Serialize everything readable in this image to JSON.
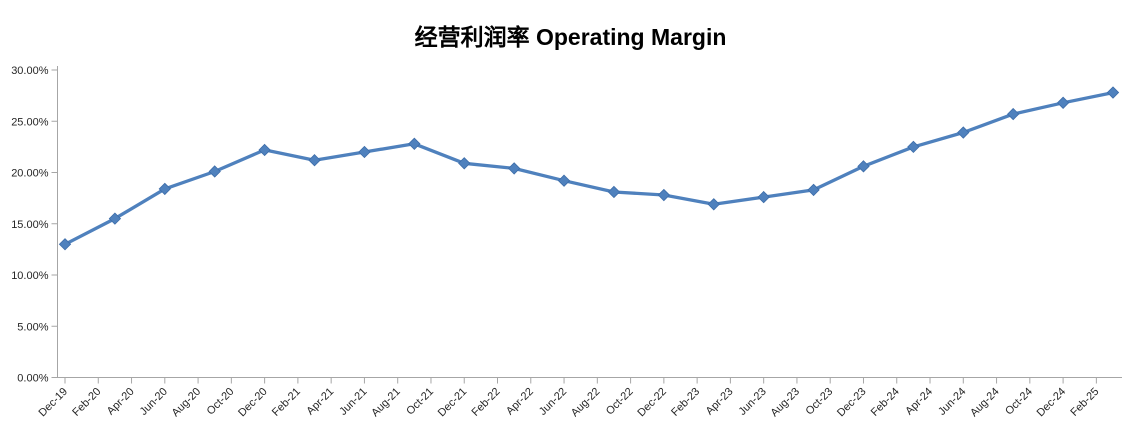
{
  "chart_data": {
    "type": "line",
    "title": "经营利润率 Operating Margin",
    "legend": "none",
    "grid": false,
    "series_name": "Operating Margin",
    "series_color": "#4F81BD",
    "axis_color": "#A6A6A6",
    "label_color": "#262626",
    "ylim": [
      0,
      30
    ],
    "y_tick_labels": [
      "0.00%",
      "5.00%",
      "10.00%",
      "15.00%",
      "20.00%",
      "25.00%",
      "30.00%"
    ],
    "y_tick_values": [
      0,
      5,
      10,
      15,
      20,
      25,
      30
    ],
    "x_tick_labels": [
      "Dec-19",
      "Feb-20",
      "Apr-20",
      "Jun-20",
      "Aug-20",
      "Oct-20",
      "Dec-20",
      "Feb-21",
      "Apr-21",
      "Jun-21",
      "Aug-21",
      "Oct-21",
      "Dec-21",
      "Feb-22",
      "Apr-22",
      "Jun-22",
      "Aug-22",
      "Oct-22",
      "Dec-22",
      "Feb-23",
      "Apr-23",
      "Jun-23",
      "Aug-23",
      "Oct-23",
      "Dec-23",
      "Feb-24",
      "Apr-24",
      "Jun-24",
      "Aug-24",
      "Oct-24",
      "Dec-24",
      "Feb-25"
    ],
    "x_tick_interval_months": 2,
    "points": [
      {
        "period": "Dec-19",
        "m": 0,
        "value": 13.0
      },
      {
        "period": "Mar-20",
        "m": 3,
        "value": 15.5
      },
      {
        "period": "Jun-20",
        "m": 6,
        "value": 18.4
      },
      {
        "period": "Sep-20",
        "m": 9,
        "value": 20.1
      },
      {
        "period": "Dec-20",
        "m": 12,
        "value": 22.2
      },
      {
        "period": "Mar-21",
        "m": 15,
        "value": 21.2
      },
      {
        "period": "Jun-21",
        "m": 18,
        "value": 22.0
      },
      {
        "period": "Sep-21",
        "m": 21,
        "value": 22.8
      },
      {
        "period": "Dec-21",
        "m": 24,
        "value": 20.9
      },
      {
        "period": "Mar-22",
        "m": 27,
        "value": 20.4
      },
      {
        "period": "Jun-22",
        "m": 30,
        "value": 19.2
      },
      {
        "period": "Sep-22",
        "m": 33,
        "value": 18.1
      },
      {
        "period": "Dec-22",
        "m": 36,
        "value": 17.8
      },
      {
        "period": "Mar-23",
        "m": 39,
        "value": 16.9
      },
      {
        "period": "Jun-23",
        "m": 42,
        "value": 17.6
      },
      {
        "period": "Sep-23",
        "m": 45,
        "value": 18.3
      },
      {
        "period": "Dec-23",
        "m": 48,
        "value": 20.6
      },
      {
        "period": "Mar-24",
        "m": 51,
        "value": 22.5
      },
      {
        "period": "Jun-24",
        "m": 54,
        "value": 23.9
      },
      {
        "period": "Sep-24",
        "m": 57,
        "value": 25.7
      },
      {
        "period": "Dec-24",
        "m": 60,
        "value": 26.8
      },
      {
        "period": "Mar-25",
        "m": 63,
        "value": 27.8
      }
    ]
  }
}
